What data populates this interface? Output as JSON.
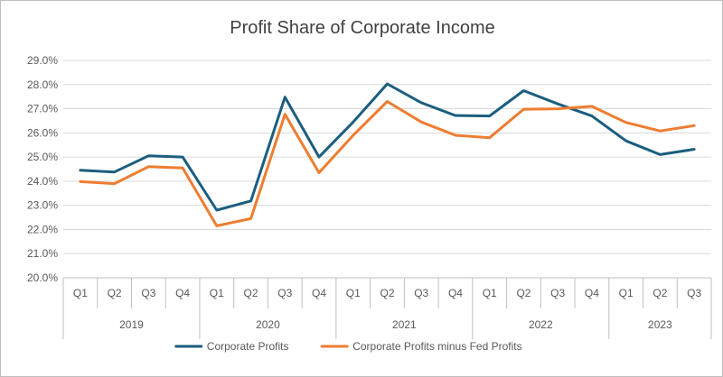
{
  "chart_data": {
    "type": "line",
    "title": "Profit Share of Corporate Income",
    "xlabel": "",
    "ylabel": "",
    "ylim": [
      0.2,
      0.29
    ],
    "y_tick_step": 0.01,
    "y_tick_format": "percent_1dp",
    "categories": [
      {
        "quarter": "Q1",
        "year": "2019"
      },
      {
        "quarter": "Q2",
        "year": "2019"
      },
      {
        "quarter": "Q3",
        "year": "2019"
      },
      {
        "quarter": "Q4",
        "year": "2019"
      },
      {
        "quarter": "Q1",
        "year": "2020"
      },
      {
        "quarter": "Q2",
        "year": "2020"
      },
      {
        "quarter": "Q3",
        "year": "2020"
      },
      {
        "quarter": "Q4",
        "year": "2020"
      },
      {
        "quarter": "Q1",
        "year": "2021"
      },
      {
        "quarter": "Q2",
        "year": "2021"
      },
      {
        "quarter": "Q3",
        "year": "2021"
      },
      {
        "quarter": "Q4",
        "year": "2021"
      },
      {
        "quarter": "Q1",
        "year": "2022"
      },
      {
        "quarter": "Q2",
        "year": "2022"
      },
      {
        "quarter": "Q3",
        "year": "2022"
      },
      {
        "quarter": "Q4",
        "year": "2022"
      },
      {
        "quarter": "Q1",
        "year": "2023"
      },
      {
        "quarter": "Q2",
        "year": "2023"
      },
      {
        "quarter": "Q3",
        "year": "2023"
      }
    ],
    "years": [
      "2019",
      "2020",
      "2021",
      "2022",
      "2023"
    ],
    "series": [
      {
        "name": "Corporate Profits",
        "color": "#1b5e7f",
        "values": [
          0.2445,
          0.2438,
          0.2505,
          0.25,
          0.228,
          0.2318,
          0.2748,
          0.25,
          0.2645,
          0.2803,
          0.2725,
          0.2672,
          0.267,
          0.2775,
          0.272,
          0.267,
          0.2567,
          0.251,
          0.2532
        ]
      },
      {
        "name": "Corporate Profits minus Fed Profits",
        "color": "#ed7d31",
        "values": [
          0.2398,
          0.239,
          0.246,
          0.2455,
          0.2215,
          0.2245,
          0.2677,
          0.2435,
          0.259,
          0.273,
          0.2645,
          0.259,
          0.258,
          0.2698,
          0.27,
          0.271,
          0.2643,
          0.2608,
          0.263
        ]
      }
    ],
    "grid": "horizontal",
    "legend_position": "bottom"
  }
}
